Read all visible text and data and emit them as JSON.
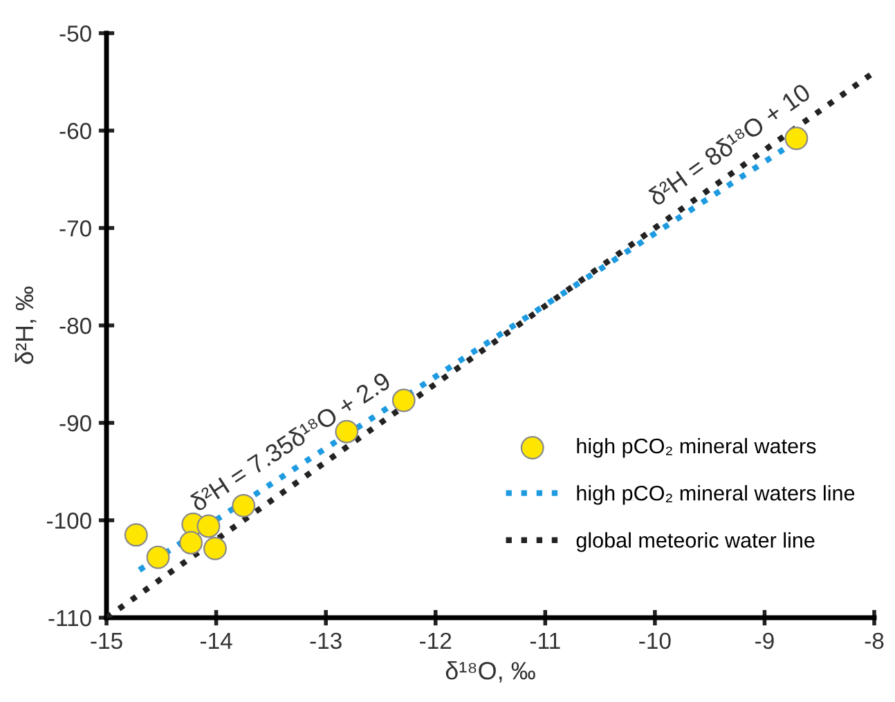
{
  "chart_data": {
    "type": "scatter",
    "xlabel": "δ¹⁸O, ‰",
    "ylabel": "δ²H, ‰",
    "xlim": [
      -15,
      -8
    ],
    "ylim": [
      -110,
      -50
    ],
    "xticks": [
      -15,
      -14,
      -13,
      -12,
      -11,
      -10,
      -9,
      -8
    ],
    "yticks": [
      -110,
      -100,
      -90,
      -80,
      -70,
      -60,
      -50
    ],
    "grid": false,
    "legend": "lower right",
    "series": [
      {
        "name": "high pCO₂ mineral waters",
        "marker": "circle",
        "color": "#ffe600",
        "x": [
          -14.73,
          -14.53,
          -14.21,
          -14.07,
          -14.23,
          -14.01,
          -13.75,
          -12.81,
          -12.29,
          -8.71
        ],
        "values": [
          -101.5,
          -103.8,
          -100.4,
          -100.6,
          -102.3,
          -102.9,
          -98.5,
          -90.9,
          -87.7,
          -60.8
        ]
      },
      {
        "name": "high pCO₂ mineral waters line",
        "type": "line",
        "color": "#1e9be0",
        "line_style": "dotted",
        "x": [
          -14.7,
          -8.7
        ],
        "values": [
          -105.1,
          -61.0
        ]
      },
      {
        "name": "global meteoric water line",
        "type": "line",
        "color": "#222222",
        "line_style": "dotted",
        "x": [
          -15,
          -8
        ],
        "values": [
          -110,
          -54
        ]
      }
    ],
    "annotations": [
      "δ²H = 7.35δ¹⁸O + 2.9",
      "δ²H = 8δ¹⁸O + 10"
    ]
  }
}
